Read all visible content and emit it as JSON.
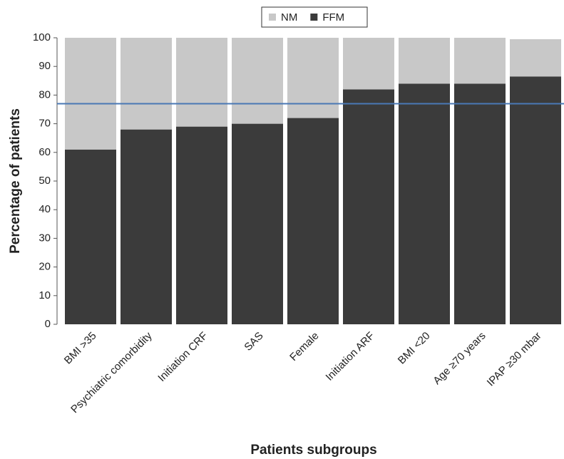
{
  "chart_data": {
    "type": "stacked_bar",
    "x_label": "Patients subgroups",
    "y_label": "Percentage of patients",
    "categories": [
      "BMI >35",
      "Psychiatric comorbidity",
      "Initiation CRF",
      "SAS",
      "Female",
      "Initiation ARF",
      "BMI <20",
      "Age ≥70 years",
      "IPAP ≥30 mbar"
    ],
    "series": [
      {
        "name": "FFM",
        "color": "#3b3b3b",
        "values": [
          61,
          68,
          69,
          70,
          72,
          82,
          84,
          84,
          86.5
        ]
      },
      {
        "name": "NM",
        "color": "#c8c8c8",
        "values": [
          39,
          32,
          31,
          30,
          28,
          18,
          16,
          16,
          13
        ]
      }
    ],
    "legend_order": [
      "NM",
      "FFM"
    ],
    "reference_line": {
      "value": 77,
      "color": "#4a78b5"
    },
    "ylim": [
      0,
      100
    ],
    "yticks": [
      0,
      10,
      20,
      30,
      40,
      50,
      60,
      70,
      80,
      90,
      100
    ]
  }
}
